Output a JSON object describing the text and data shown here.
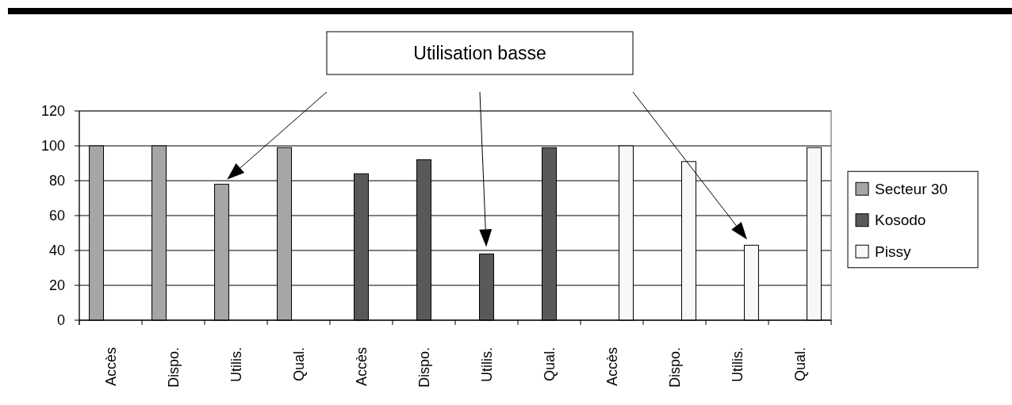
{
  "chart_data": {
    "type": "bar",
    "categories": [
      "Accès",
      "Dispo.",
      "Utilis.",
      "Qual.",
      "Accès",
      "Dispo.",
      "Utilis.",
      "Qual.",
      "Accès",
      "Dispo.",
      "Utilis.",
      "Qual."
    ],
    "series": [
      {
        "name": "Secteur 30",
        "color": "#a6a6a6",
        "values": [
          100,
          100,
          78,
          99,
          null,
          null,
          null,
          null,
          null,
          null,
          null,
          null
        ]
      },
      {
        "name": "Kosodo",
        "color": "#595959",
        "values": [
          null,
          null,
          null,
          null,
          84,
          92,
          38,
          99,
          null,
          null,
          null,
          null
        ]
      },
      {
        "name": "Pissy",
        "color": "#f8f8f8",
        "values": [
          null,
          null,
          null,
          null,
          null,
          null,
          null,
          null,
          100,
          91,
          43,
          99
        ]
      }
    ],
    "ylim": [
      0,
      120
    ],
    "yticks": [
      0,
      20,
      40,
      60,
      80,
      100,
      120
    ],
    "grid": "y",
    "legend": "right",
    "annotations": [
      "Utilisation basse"
    ]
  }
}
